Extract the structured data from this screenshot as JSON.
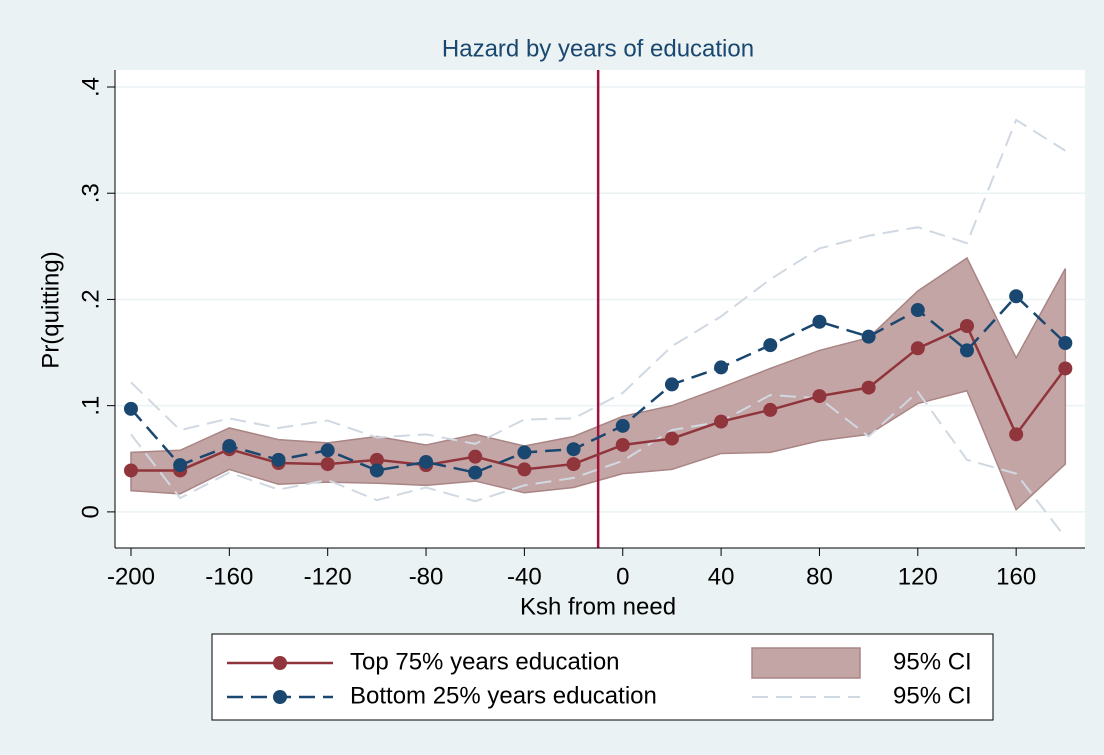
{
  "chart_data": {
    "type": "line",
    "title": "Hazard by years of education",
    "xlabel": "Ksh from need",
    "ylabel": "Pr(quitting)",
    "x": [
      -200,
      -180,
      -160,
      -140,
      -120,
      -100,
      -80,
      -60,
      -40,
      -20,
      0,
      20,
      40,
      60,
      80,
      100,
      120,
      140,
      160,
      180
    ],
    "series": [
      {
        "name": "Top 75% years education",
        "color": "#90353b",
        "dash": false,
        "values": [
          0.039,
          0.039,
          0.059,
          0.046,
          0.045,
          0.049,
          0.044,
          0.052,
          0.04,
          0.045,
          0.063,
          0.069,
          0.085,
          0.096,
          0.109,
          0.117,
          0.154,
          0.175,
          0.073,
          0.135
        ]
      },
      {
        "name": "Bottom 25% years education",
        "color": "#1a476f",
        "dash": true,
        "values": [
          0.097,
          0.044,
          0.062,
          0.049,
          0.058,
          0.039,
          0.047,
          0.037,
          0.056,
          0.059,
          0.081,
          0.12,
          0.136,
          0.157,
          0.179,
          0.165,
          0.19,
          0.152,
          0.203,
          0.159
        ]
      }
    ],
    "bands": [
      {
        "name": "95% CI",
        "color": "#c4a5a5",
        "filled": true,
        "upper": [
          0.056,
          0.058,
          0.079,
          0.068,
          0.065,
          0.071,
          0.063,
          0.073,
          0.062,
          0.071,
          0.09,
          0.1,
          0.117,
          0.135,
          0.152,
          0.164,
          0.208,
          0.239,
          0.145,
          0.229
        ],
        "lower": [
          0.02,
          0.017,
          0.04,
          0.026,
          0.028,
          0.027,
          0.025,
          0.029,
          0.018,
          0.023,
          0.036,
          0.04,
          0.055,
          0.056,
          0.067,
          0.073,
          0.102,
          0.114,
          0.002,
          0.045
        ]
      },
      {
        "name": "95% CI",
        "color": "#d0d8e2",
        "filled": false,
        "upper": [
          0.122,
          0.077,
          0.088,
          0.079,
          0.086,
          0.07,
          0.073,
          0.064,
          0.087,
          0.088,
          0.112,
          0.156,
          0.184,
          0.219,
          0.248,
          0.26,
          0.268,
          0.253,
          0.369,
          0.34
        ],
        "lower": [
          0.073,
          0.013,
          0.037,
          0.021,
          0.03,
          0.011,
          0.023,
          0.01,
          0.025,
          0.032,
          0.048,
          0.077,
          0.085,
          0.11,
          0.107,
          0.071,
          0.113,
          0.049,
          0.036,
          -0.024
        ]
      }
    ],
    "xline": -10,
    "xline_color": "#a0123a",
    "xlim": [
      -206.5,
      188
    ],
    "ylim": [
      -0.034,
      0.416
    ],
    "xticks": [
      -200,
      -160,
      -120,
      -80,
      -40,
      0,
      40,
      80,
      120,
      160
    ],
    "yticks": [
      0,
      {
        "value": 0.1,
        "label": ".1"
      },
      {
        "value": 0.2,
        "label": ".2"
      },
      {
        "value": 0.3,
        "label": ".3"
      },
      {
        "value": 0.4,
        "label": ".4"
      }
    ],
    "grid": true
  }
}
